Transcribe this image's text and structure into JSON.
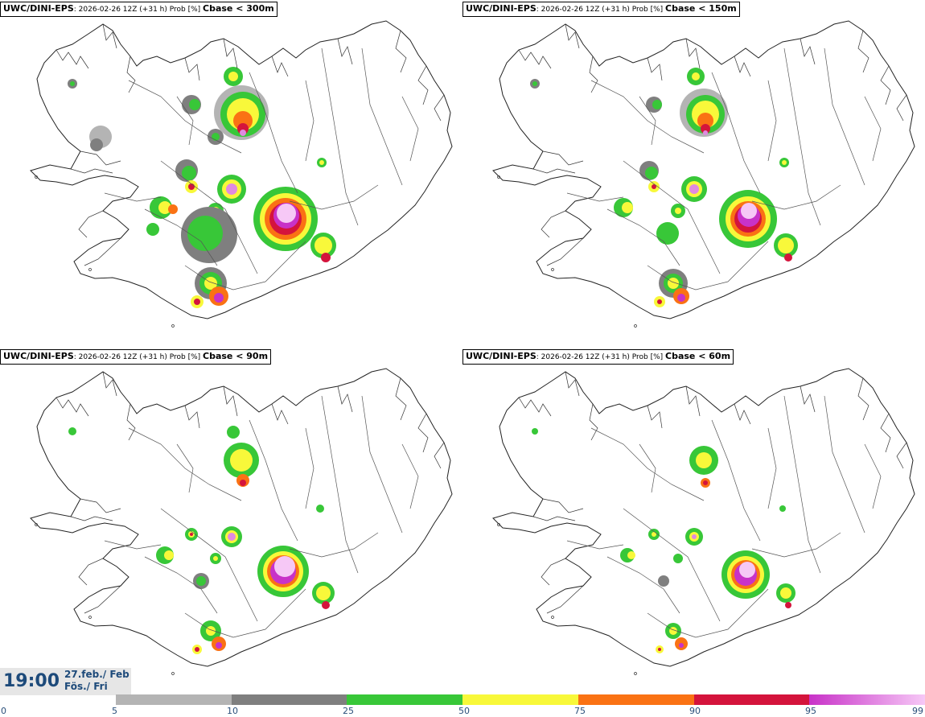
{
  "panels": [
    {
      "model": "UWC/DINI-EPS",
      "meta": ": 2026-02-26 12Z (+31 h) Prob [%] ",
      "variable": "Cbase < 300m"
    },
    {
      "model": "UWC/DINI-EPS",
      "meta": ": 2026-02-26 12Z (+31 h) Prob [%] ",
      "variable": "Cbase < 150m"
    },
    {
      "model": "UWC/DINI-EPS",
      "meta": ": 2026-02-26 12Z (+31 h) Prob [%] ",
      "variable": "Cbase < 90m"
    },
    {
      "model": "UWC/DINI-EPS",
      "meta": ": 2026-02-26 12Z (+31 h) Prob [%] ",
      "variable": "Cbase < 60m"
    }
  ],
  "valid_time": {
    "time": "19:00",
    "date_line1": "27.feb./ Feb",
    "date_line2": "Fös./ Fri"
  },
  "colorbar": {
    "ticks": [
      "0",
      "5",
      "10",
      "25",
      "50",
      "75",
      "90",
      "95",
      "99"
    ],
    "colors": [
      "#b4b4b4",
      "#7f7f7f",
      "#38c738",
      "#f8f83a",
      "#fa7214",
      "#d4143c",
      "#c832c8"
    ],
    "gradient_end": "#f6c8f6"
  },
  "map_region": "Iceland",
  "colors": {
    "timebox_text": "#1d4a7a",
    "tick_text": "#2a4f7a"
  }
}
